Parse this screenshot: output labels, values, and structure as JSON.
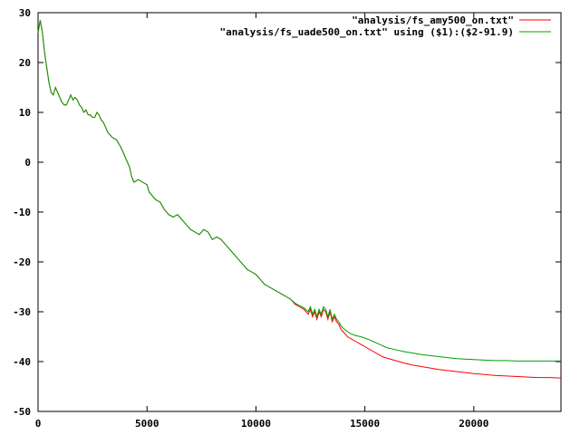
{
  "chart_data": {
    "type": "line",
    "title": "",
    "xlabel": "",
    "ylabel": "",
    "xlim": [
      0,
      24000
    ],
    "ylim": [
      -50,
      30
    ],
    "xticks": [
      0,
      5000,
      10000,
      15000,
      20000
    ],
    "yticks": [
      -50,
      -40,
      -30,
      -20,
      -10,
      0,
      10,
      20,
      30
    ],
    "grid": false,
    "legend_position": "top-right",
    "series": [
      {
        "name": "\"analysis/fs_amy500_on.txt\"",
        "color": "#ff0000",
        "points": [
          [
            0,
            26
          ],
          [
            100,
            28.5
          ],
          [
            200,
            26
          ],
          [
            300,
            22
          ],
          [
            400,
            19
          ],
          [
            500,
            16
          ],
          [
            600,
            14
          ],
          [
            700,
            13.5
          ],
          [
            800,
            15
          ],
          [
            900,
            14
          ],
          [
            1000,
            13
          ],
          [
            1100,
            12
          ],
          [
            1200,
            11.5
          ],
          [
            1300,
            11.5
          ],
          [
            1400,
            12.5
          ],
          [
            1500,
            13.5
          ],
          [
            1600,
            12.5
          ],
          [
            1700,
            13
          ],
          [
            1800,
            12.5
          ],
          [
            1900,
            11.5
          ],
          [
            2000,
            11
          ],
          [
            2100,
            10
          ],
          [
            2200,
            10.5
          ],
          [
            2300,
            9.5
          ],
          [
            2400,
            9.5
          ],
          [
            2500,
            9
          ],
          [
            2600,
            9
          ],
          [
            2700,
            10
          ],
          [
            2800,
            9.5
          ],
          [
            2900,
            8.5
          ],
          [
            3000,
            8
          ],
          [
            3200,
            6
          ],
          [
            3400,
            5
          ],
          [
            3600,
            4.5
          ],
          [
            3800,
            3
          ],
          [
            4000,
            1
          ],
          [
            4100,
            0
          ],
          [
            4200,
            -1
          ],
          [
            4300,
            -3
          ],
          [
            4400,
            -4
          ],
          [
            4600,
            -3.5
          ],
          [
            4800,
            -4
          ],
          [
            5000,
            -4.5
          ],
          [
            5100,
            -6
          ],
          [
            5200,
            -6.5
          ],
          [
            5300,
            -7
          ],
          [
            5400,
            -7.5
          ],
          [
            5600,
            -8
          ],
          [
            5800,
            -9.5
          ],
          [
            6000,
            -10.5
          ],
          [
            6200,
            -11
          ],
          [
            6400,
            -10.5
          ],
          [
            6600,
            -11.5
          ],
          [
            6800,
            -12.5
          ],
          [
            7000,
            -13.5
          ],
          [
            7200,
            -14
          ],
          [
            7400,
            -14.5
          ],
          [
            7600,
            -13.5
          ],
          [
            7800,
            -14
          ],
          [
            8000,
            -15.5
          ],
          [
            8200,
            -15
          ],
          [
            8400,
            -15.5
          ],
          [
            8600,
            -16.5
          ],
          [
            8800,
            -17.5
          ],
          [
            9000,
            -18.5
          ],
          [
            9200,
            -19.5
          ],
          [
            9400,
            -20.5
          ],
          [
            9600,
            -21.5
          ],
          [
            9800,
            -22
          ],
          [
            10000,
            -22.5
          ],
          [
            10200,
            -23.5
          ],
          [
            10400,
            -24.5
          ],
          [
            10600,
            -25
          ],
          [
            10800,
            -25.5
          ],
          [
            11000,
            -26
          ],
          [
            11200,
            -26.5
          ],
          [
            11400,
            -27
          ],
          [
            11600,
            -27.5
          ],
          [
            11800,
            -28.5
          ],
          [
            12000,
            -29
          ],
          [
            12200,
            -29.5
          ],
          [
            12400,
            -30.5
          ],
          [
            12500,
            -29.5
          ],
          [
            12600,
            -31
          ],
          [
            12700,
            -30
          ],
          [
            12800,
            -31.5
          ],
          [
            12900,
            -30
          ],
          [
            13000,
            -31
          ],
          [
            13100,
            -29.5
          ],
          [
            13200,
            -30
          ],
          [
            13300,
            -31.5
          ],
          [
            13400,
            -30
          ],
          [
            13500,
            -32
          ],
          [
            13600,
            -31
          ],
          [
            13700,
            -32
          ],
          [
            13800,
            -32.5
          ],
          [
            13900,
            -33.5
          ],
          [
            14000,
            -34
          ],
          [
            14200,
            -35
          ],
          [
            14400,
            -35.5
          ],
          [
            14600,
            -36
          ],
          [
            14800,
            -36.5
          ],
          [
            15000,
            -37
          ],
          [
            15200,
            -37.5
          ],
          [
            15400,
            -38
          ],
          [
            15600,
            -38.5
          ],
          [
            15800,
            -39
          ],
          [
            16000,
            -39.3
          ],
          [
            16400,
            -39.8
          ],
          [
            16800,
            -40.3
          ],
          [
            17200,
            -40.7
          ],
          [
            17600,
            -41
          ],
          [
            18000,
            -41.3
          ],
          [
            18400,
            -41.6
          ],
          [
            18800,
            -41.8
          ],
          [
            19200,
            -42
          ],
          [
            19600,
            -42.2
          ],
          [
            20000,
            -42.4
          ],
          [
            20500,
            -42.6
          ],
          [
            21000,
            -42.8
          ],
          [
            21500,
            -42.9
          ],
          [
            22000,
            -43
          ],
          [
            22500,
            -43.1
          ],
          [
            23000,
            -43.2
          ],
          [
            23500,
            -43.2
          ],
          [
            24000,
            -43.3
          ]
        ]
      },
      {
        "name": "\"analysis/fs_uade500_on.txt\" using ($1):($2-91.9)",
        "color": "#00a000",
        "points": [
          [
            0,
            26
          ],
          [
            100,
            28.5
          ],
          [
            200,
            26
          ],
          [
            300,
            22
          ],
          [
            400,
            19
          ],
          [
            500,
            16
          ],
          [
            600,
            14
          ],
          [
            700,
            13.5
          ],
          [
            800,
            15
          ],
          [
            900,
            14
          ],
          [
            1000,
            13
          ],
          [
            1100,
            12
          ],
          [
            1200,
            11.5
          ],
          [
            1300,
            11.5
          ],
          [
            1400,
            12.5
          ],
          [
            1500,
            13.5
          ],
          [
            1600,
            12.5
          ],
          [
            1700,
            13
          ],
          [
            1800,
            12.5
          ],
          [
            1900,
            11.5
          ],
          [
            2000,
            11
          ],
          [
            2100,
            10
          ],
          [
            2200,
            10.5
          ],
          [
            2300,
            9.5
          ],
          [
            2400,
            9.5
          ],
          [
            2500,
            9
          ],
          [
            2600,
            9
          ],
          [
            2700,
            10
          ],
          [
            2800,
            9.5
          ],
          [
            2900,
            8.5
          ],
          [
            3000,
            8
          ],
          [
            3200,
            6
          ],
          [
            3400,
            5
          ],
          [
            3600,
            4.5
          ],
          [
            3800,
            3
          ],
          [
            4000,
            1
          ],
          [
            4100,
            0
          ],
          [
            4200,
            -1
          ],
          [
            4300,
            -3
          ],
          [
            4400,
            -4
          ],
          [
            4600,
            -3.5
          ],
          [
            4800,
            -4
          ],
          [
            5000,
            -4.5
          ],
          [
            5100,
            -6
          ],
          [
            5200,
            -6.5
          ],
          [
            5300,
            -7
          ],
          [
            5400,
            -7.5
          ],
          [
            5600,
            -8
          ],
          [
            5800,
            -9.5
          ],
          [
            6000,
            -10.5
          ],
          [
            6200,
            -11
          ],
          [
            6400,
            -10.5
          ],
          [
            6600,
            -11.5
          ],
          [
            6800,
            -12.5
          ],
          [
            7000,
            -13.5
          ],
          [
            7200,
            -14
          ],
          [
            7400,
            -14.5
          ],
          [
            7600,
            -13.5
          ],
          [
            7800,
            -14
          ],
          [
            8000,
            -15.5
          ],
          [
            8200,
            -15
          ],
          [
            8400,
            -15.5
          ],
          [
            8600,
            -16.5
          ],
          [
            8800,
            -17.5
          ],
          [
            9000,
            -18.5
          ],
          [
            9200,
            -19.5
          ],
          [
            9400,
            -20.5
          ],
          [
            9600,
            -21.5
          ],
          [
            9800,
            -22
          ],
          [
            10000,
            -22.5
          ],
          [
            10200,
            -23.5
          ],
          [
            10400,
            -24.5
          ],
          [
            10600,
            -25
          ],
          [
            10800,
            -25.5
          ],
          [
            11000,
            -26
          ],
          [
            11200,
            -26.5
          ],
          [
            11400,
            -27
          ],
          [
            11600,
            -27.5
          ],
          [
            11800,
            -28.3
          ],
          [
            12000,
            -28.8
          ],
          [
            12200,
            -29.2
          ],
          [
            12400,
            -30
          ],
          [
            12500,
            -29
          ],
          [
            12600,
            -30.5
          ],
          [
            12700,
            -29.5
          ],
          [
            12800,
            -31
          ],
          [
            12900,
            -29.5
          ],
          [
            13000,
            -30.5
          ],
          [
            13100,
            -29
          ],
          [
            13200,
            -29.5
          ],
          [
            13300,
            -31
          ],
          [
            13400,
            -29.5
          ],
          [
            13500,
            -31.5
          ],
          [
            13600,
            -30.5
          ],
          [
            13700,
            -31.5
          ],
          [
            13800,
            -32
          ],
          [
            13900,
            -32.8
          ],
          [
            14000,
            -33.3
          ],
          [
            14200,
            -34
          ],
          [
            14400,
            -34.5
          ],
          [
            14600,
            -34.8
          ],
          [
            14800,
            -35
          ],
          [
            15000,
            -35.3
          ],
          [
            15200,
            -35.6
          ],
          [
            15400,
            -36
          ],
          [
            15600,
            -36.4
          ],
          [
            15800,
            -36.8
          ],
          [
            16000,
            -37.2
          ],
          [
            16400,
            -37.6
          ],
          [
            16800,
            -38
          ],
          [
            17200,
            -38.3
          ],
          [
            17600,
            -38.6
          ],
          [
            18000,
            -38.8
          ],
          [
            18400,
            -39
          ],
          [
            18800,
            -39.2
          ],
          [
            19200,
            -39.4
          ],
          [
            19600,
            -39.5
          ],
          [
            20000,
            -39.6
          ],
          [
            20500,
            -39.7
          ],
          [
            21000,
            -39.8
          ],
          [
            21500,
            -39.8
          ],
          [
            22000,
            -39.9
          ],
          [
            22500,
            -39.9
          ],
          [
            23000,
            -39.9
          ],
          [
            23500,
            -39.9
          ],
          [
            24000,
            -39.9
          ]
        ]
      }
    ]
  }
}
